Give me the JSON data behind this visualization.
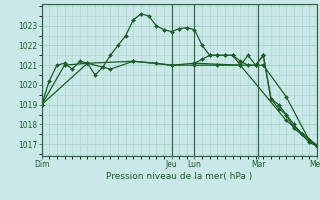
{
  "background_color": "#cbe8e8",
  "plot_bg_color": "#cbe8e8",
  "grid_color": "#aad4cc",
  "line_color": "#1a5c28",
  "title": "Pression niveau de la mer( hPa )",
  "ylim": [
    1016.4,
    1024.1
  ],
  "yticks": [
    1017,
    1018,
    1019,
    1020,
    1021,
    1022,
    1023
  ],
  "day_labels": [
    "Dim",
    "Jeu",
    "Lun",
    "Mar",
    "Mer"
  ],
  "xlim": [
    0,
    216
  ],
  "day_positions_h": [
    0,
    102,
    120,
    170,
    216
  ],
  "vline_positions_h": [
    0,
    102,
    120,
    170,
    216
  ],
  "line1_x": [
    0,
    6,
    12,
    18,
    24,
    30,
    36,
    42,
    48,
    54,
    60,
    66,
    72,
    78,
    84,
    90,
    96,
    102,
    108,
    114,
    120,
    126,
    132,
    138,
    144,
    150,
    156,
    162,
    168,
    174,
    180,
    186,
    192,
    198,
    204,
    210,
    216
  ],
  "line1_y": [
    1019.0,
    1020.2,
    1021.0,
    1021.1,
    1020.8,
    1021.2,
    1021.1,
    1020.5,
    1020.9,
    1021.5,
    1022.0,
    1022.5,
    1023.3,
    1023.6,
    1023.5,
    1023.0,
    1022.8,
    1022.7,
    1022.85,
    1022.9,
    1022.8,
    1022.0,
    1021.5,
    1021.5,
    1021.5,
    1021.5,
    1021.2,
    1021.0,
    1021.0,
    1021.5,
    1019.3,
    1019.0,
    1018.5,
    1018.0,
    1017.5,
    1017.2,
    1016.9
  ],
  "line2_x": [
    0,
    18,
    36,
    54,
    72,
    90,
    102,
    120,
    138,
    156,
    174,
    192,
    210,
    216
  ],
  "line2_y": [
    1019.0,
    1021.0,
    1021.1,
    1020.8,
    1021.2,
    1021.1,
    1021.0,
    1021.0,
    1021.0,
    1021.0,
    1021.0,
    1019.4,
    1017.2,
    1016.95
  ],
  "line3_x": [
    0,
    36,
    72,
    102,
    120,
    156,
    192,
    216
  ],
  "line3_y": [
    1019.0,
    1021.1,
    1021.2,
    1021.0,
    1021.1,
    1021.0,
    1018.2,
    1016.95
  ],
  "line4_x": [
    120,
    126,
    132,
    138,
    144,
    150,
    156,
    162,
    168,
    174,
    180,
    186,
    192,
    198,
    204,
    210,
    216
  ],
  "line4_y": [
    1021.1,
    1021.3,
    1021.5,
    1021.5,
    1021.5,
    1021.5,
    1021.0,
    1021.5,
    1021.0,
    1021.5,
    1019.3,
    1018.8,
    1018.5,
    1017.8,
    1017.5,
    1017.1,
    1016.9
  ]
}
